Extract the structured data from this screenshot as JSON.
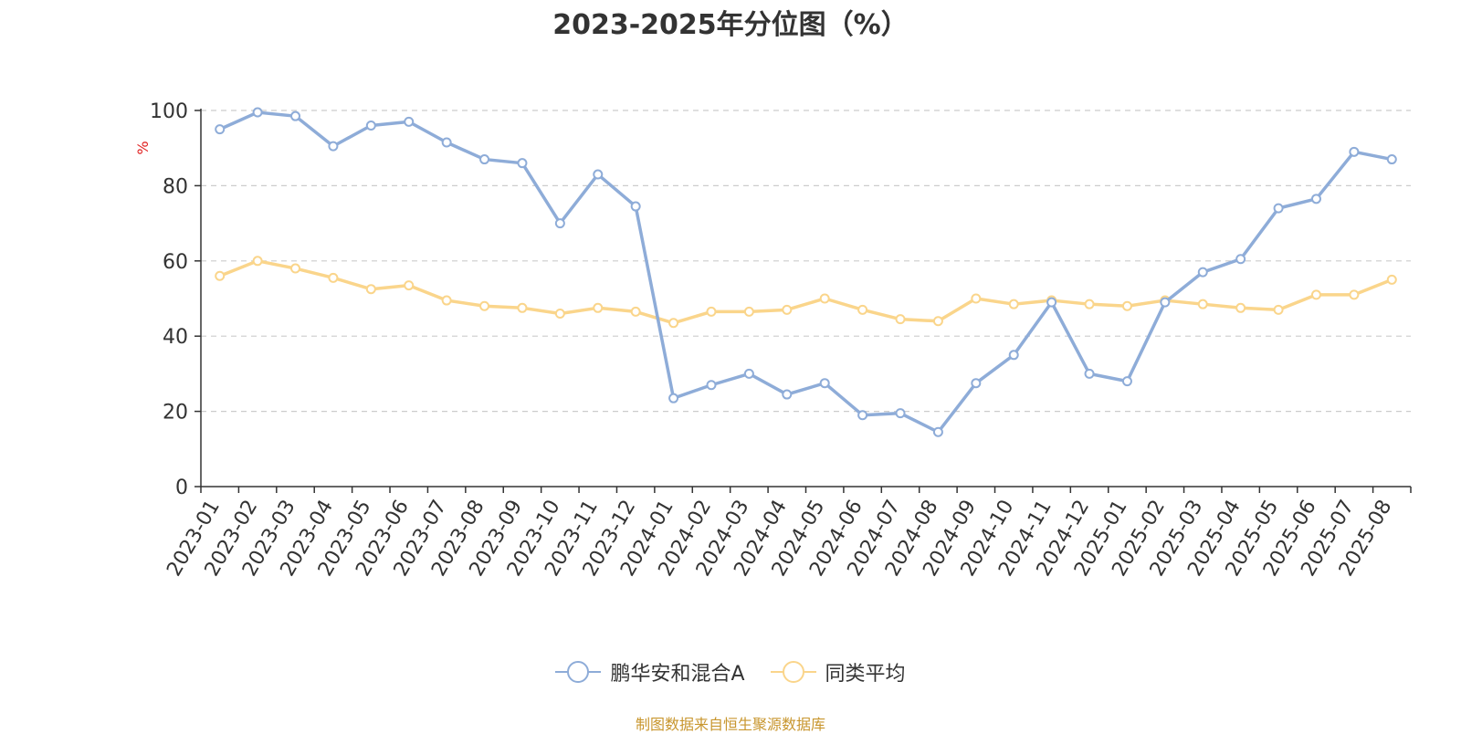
{
  "chart_data": {
    "type": "line",
    "title": "2023-2025年分位图（%）",
    "ylabel": "%",
    "xlabel": "",
    "ylim": [
      0,
      100
    ],
    "yticks": [
      0,
      20,
      40,
      60,
      80,
      100
    ],
    "grid": true,
    "legend_position": "bottom",
    "categories": [
      "2023-01",
      "2023-02",
      "2023-03",
      "2023-04",
      "2023-05",
      "2023-06",
      "2023-07",
      "2023-08",
      "2023-09",
      "2023-10",
      "2023-11",
      "2023-12",
      "2024-01",
      "2024-02",
      "2024-03",
      "2024-04",
      "2024-05",
      "2024-06",
      "2024-07",
      "2024-08",
      "2024-09",
      "2024-10",
      "2024-11",
      "2024-12",
      "2025-01",
      "2025-02",
      "2025-03",
      "2025-04",
      "2025-05",
      "2025-06",
      "2025-07",
      "2025-08"
    ],
    "series": [
      {
        "name": "鹏华安和混合A",
        "color": "#8eacd8",
        "values": [
          95,
          99.5,
          98.5,
          90.5,
          96,
          97,
          91.5,
          87,
          86,
          70,
          83,
          74.5,
          23.5,
          27,
          30,
          24.5,
          27.5,
          19,
          19.5,
          14.5,
          27.5,
          35,
          49,
          30,
          28,
          49,
          57,
          60.5,
          74,
          76.5,
          89,
          87
        ]
      },
      {
        "name": "同类平均",
        "color": "#fad58b",
        "values": [
          56,
          60,
          58,
          55.5,
          52.5,
          53.5,
          49.5,
          48,
          47.5,
          46,
          47.5,
          46.5,
          43.5,
          46.5,
          46.5,
          47,
          50,
          47,
          44.5,
          44,
          50,
          48.5,
          49.5,
          48.5,
          48,
          49.5,
          48.5,
          47.5,
          47,
          51,
          51,
          55
        ]
      }
    ]
  },
  "legend": {
    "items": [
      {
        "label": "鹏华安和混合A",
        "color": "#8eacd8"
      },
      {
        "label": "同类平均",
        "color": "#fad58b"
      }
    ]
  },
  "footer": {
    "source": "制图数据来自恒生聚源数据库"
  }
}
